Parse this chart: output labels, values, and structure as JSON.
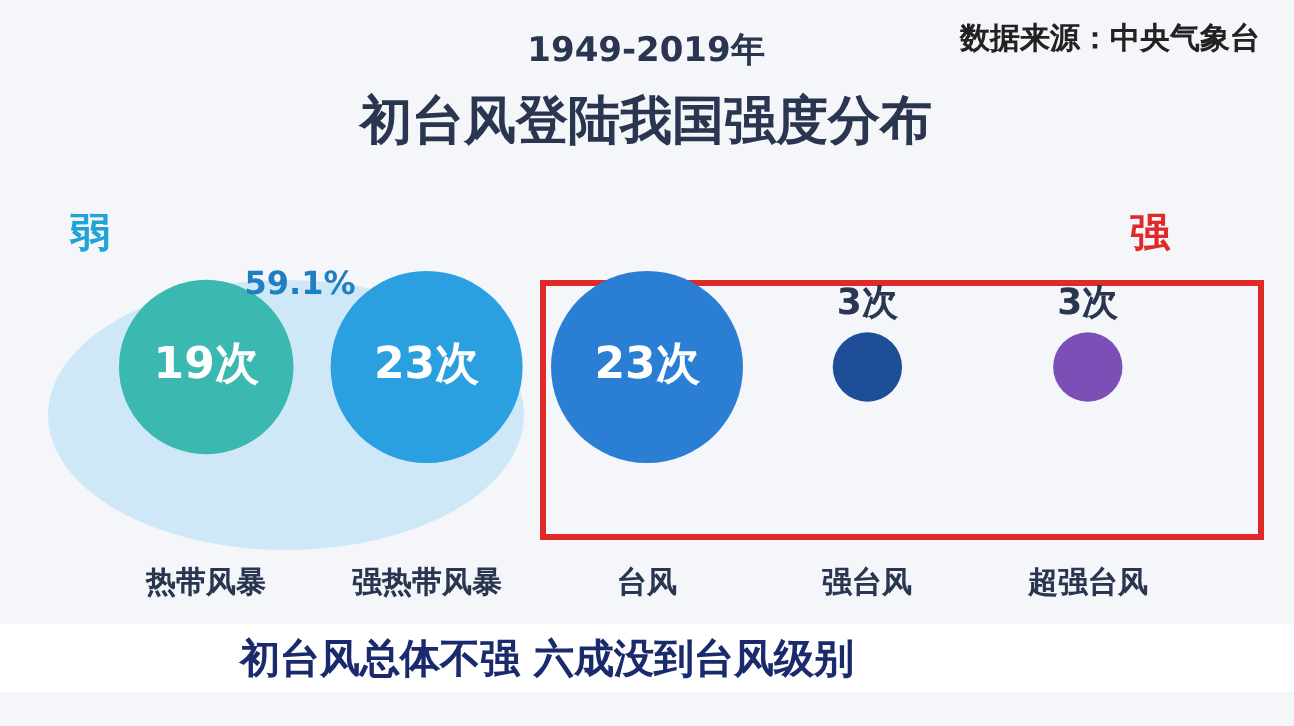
{
  "chart_data": {
    "type": "other",
    "title": "初台风登陆我国强度分布",
    "subtitle": "1949-2019年",
    "categories": [
      "热带风暴",
      "强热带风暴",
      "台风",
      "强台风",
      "超强台风"
    ],
    "values": [
      19,
      23,
      23,
      3,
      3
    ],
    "value_labels": [
      "19次",
      "23次",
      "23次",
      "3次",
      "3次"
    ],
    "colors": [
      "#3bb8b0",
      "#2aa0e0",
      "#2a7fd4",
      "#1f4e99",
      "#7b4fb5"
    ],
    "annotations": [
      "数据来源：中央气象台",
      "弱",
      "强",
      "59.1%",
      "初台风总体不强 六成没到台风级别"
    ]
  }
}
